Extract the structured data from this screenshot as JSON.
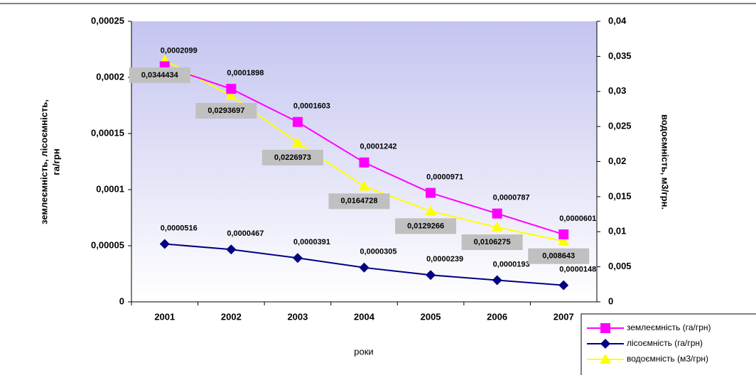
{
  "chart_data": {
    "type": "line",
    "x_label": "роки",
    "y_label": [
      "землеємність, лісоємність,",
      "га/грн"
    ],
    "y2_label": "водоємність, м3/грн.",
    "categories": [
      "2001",
      "2002",
      "2003",
      "2004",
      "2005",
      "2006",
      "2007"
    ],
    "ylim": [
      0,
      0.00025
    ],
    "yticks": [
      0,
      {
        "value": 5e-05,
        "label": "0,00005"
      },
      {
        "value": 0.0001,
        "label": "0,0001"
      },
      {
        "value": 0.00015,
        "label": "0,00015"
      },
      {
        "value": 0.0002,
        "label": "0,0002"
      },
      {
        "value": 0.00025,
        "label": "0,00025"
      }
    ],
    "y2lim": [
      0,
      0.04
    ],
    "y2ticks": [
      0,
      {
        "value": 0.005,
        "label": "0,005"
      },
      {
        "value": 0.01,
        "label": "0,01"
      },
      {
        "value": 0.015,
        "label": "0,015"
      },
      {
        "value": 0.02,
        "label": "0,02"
      },
      {
        "value": 0.025,
        "label": "0,025"
      },
      {
        "value": 0.03,
        "label": "0,03"
      },
      {
        "value": 0.035,
        "label": "0,035"
      },
      {
        "value": 0.04,
        "label": "0,04"
      }
    ],
    "series": [
      {
        "name": "землеємність (га/грн)",
        "color": "#ff00ff",
        "marker": "square",
        "values": [
          0.0002099,
          0.0001898,
          0.0001603,
          0.0001242,
          9.71e-05,
          7.87e-05,
          6.01e-05
        ],
        "value_labels": [
          "0,0002099",
          "0,0001898",
          "0,0001603",
          "0,0001242",
          "0,0000971",
          "0,0000787",
          "0,0000601"
        ]
      },
      {
        "name": "лісоємність (га/грн)",
        "color": "#000080",
        "marker": "diamond",
        "values": [
          5.16e-05,
          4.67e-05,
          3.91e-05,
          3.05e-05,
          2.39e-05,
          1.93e-05,
          1.48e-05
        ],
        "value_labels": [
          "0,0000516",
          "0,0000467",
          "0,0000391",
          "0,0000305",
          "0,0000239",
          "0,0000193",
          "0,0000148"
        ]
      },
      {
        "name": "водоємність (м3/грн)",
        "color": "#ffff00",
        "marker": "triangle",
        "axis": "y2",
        "values": [
          0.0344434,
          0.0293697,
          0.0226973,
          0.0164728,
          0.0129266,
          0.0106275,
          0.008643
        ],
        "value_labels": [
          "0,0344434",
          "0,0293697",
          "0,0226973",
          "0,0164728",
          "0,0129266",
          "0,0106275",
          "0,008643"
        ]
      }
    ]
  }
}
